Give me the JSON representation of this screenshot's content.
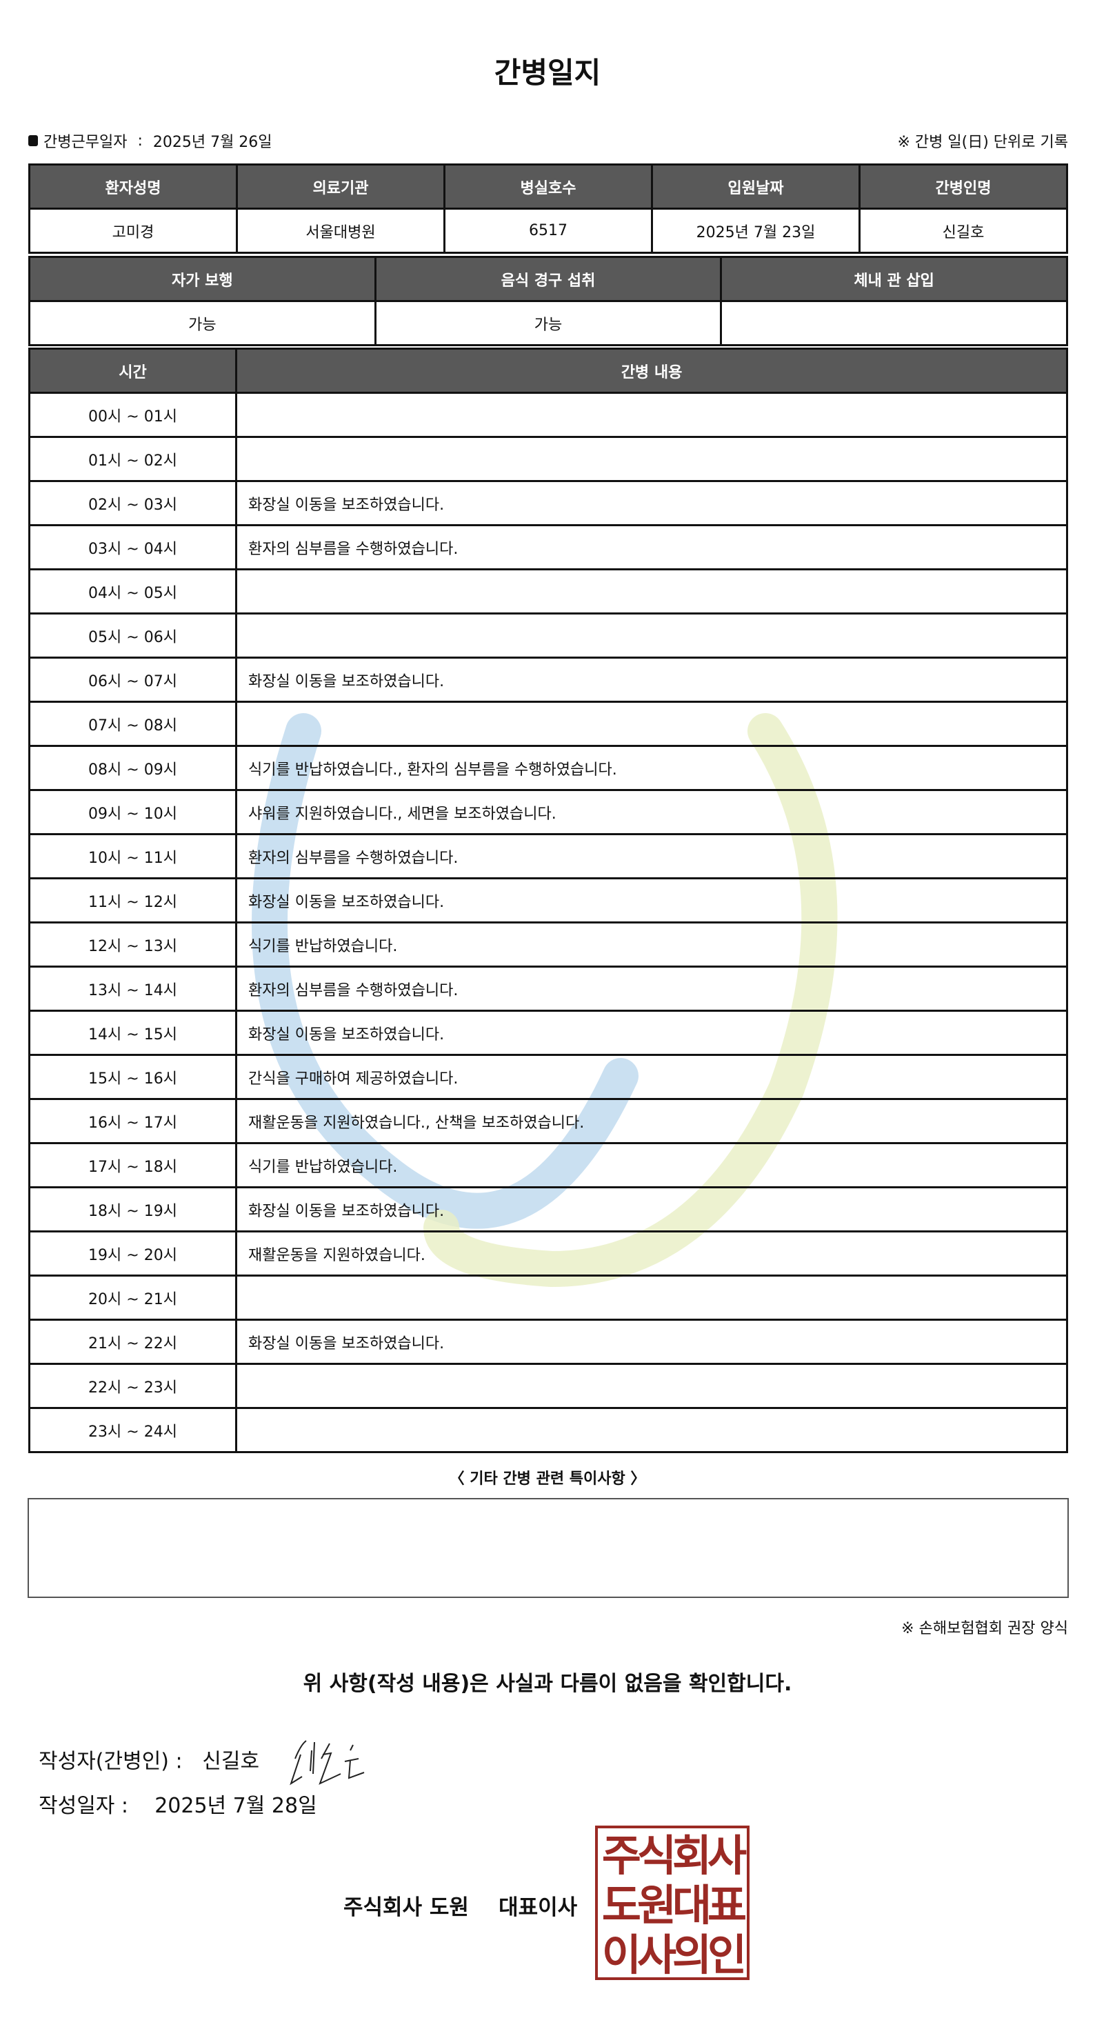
{
  "title": "간병일지",
  "info": {
    "work_date_label": "간병근무일자",
    "work_date": "2025년 7월 26일",
    "note": "※ 간병 일(日) 단위로 기록"
  },
  "patient": {
    "headers": [
      "환자성명",
      "의료기관",
      "병실호수",
      "입원날짜",
      "간병인명"
    ],
    "values": [
      "고미경",
      "서울대병원",
      "6517",
      "2025년 7월 23일",
      "신길호"
    ]
  },
  "status": {
    "headers": [
      "자가 보행",
      "음식 경구 섭취",
      "체내 관 삽입"
    ],
    "values": [
      "가능",
      "가능",
      ""
    ]
  },
  "log": {
    "headers": [
      "시간",
      "간병 내용"
    ],
    "rows": [
      [
        "00시 ~ 01시",
        ""
      ],
      [
        "01시 ~ 02시",
        ""
      ],
      [
        "02시 ~ 03시",
        "화장실 이동을 보조하였습니다."
      ],
      [
        "03시 ~ 04시",
        "환자의 심부름을 수행하였습니다."
      ],
      [
        "04시 ~ 05시",
        ""
      ],
      [
        "05시 ~ 06시",
        ""
      ],
      [
        "06시 ~ 07시",
        "화장실 이동을 보조하였습니다."
      ],
      [
        "07시 ~ 08시",
        ""
      ],
      [
        "08시 ~ 09시",
        "식기를 반납하였습니다., 환자의 심부름을 수행하였습니다."
      ],
      [
        "09시 ~ 10시",
        "샤워를 지원하였습니다., 세면을 보조하였습니다."
      ],
      [
        "10시 ~ 11시",
        "환자의 심부름을 수행하였습니다."
      ],
      [
        "11시 ~ 12시",
        "화장실 이동을 보조하였습니다."
      ],
      [
        "12시 ~ 13시",
        "식기를 반납하였습니다."
      ],
      [
        "13시 ~ 14시",
        "환자의 심부름을 수행하였습니다."
      ],
      [
        "14시 ~ 15시",
        "화장실 이동을 보조하였습니다."
      ],
      [
        "15시 ~ 16시",
        "간식을 구매하여 제공하였습니다."
      ],
      [
        "16시 ~ 17시",
        "재활운동을 지원하였습니다., 산책을 보조하였습니다."
      ],
      [
        "17시 ~ 18시",
        "식기를 반납하였습니다."
      ],
      [
        "18시 ~ 19시",
        "화장실 이동을 보조하였습니다."
      ],
      [
        "19시 ~ 20시",
        "재활운동을 지원하였습니다."
      ],
      [
        "20시 ~ 21시",
        ""
      ],
      [
        "21시 ~ 22시",
        "화장실 이동을 보조하였습니다."
      ],
      [
        "22시 ~ 23시",
        ""
      ],
      [
        "23시 ~ 24시",
        ""
      ]
    ]
  },
  "notes": {
    "title": "〈 기타 간병 관련 특이사항 〉",
    "content": ""
  },
  "footnote": "※ 손해보험협회 권장 양식",
  "confirm": "위 사항(작성 내용)은 사실과 다름이 없음을 확인합니다.",
  "writer": {
    "label": "작성자(간병인) :",
    "name": "신길호",
    "signature": "신길호"
  },
  "written_date": {
    "label": "작성일자 :",
    "value": "2025년 7월 28일"
  },
  "company": "주식회사 도원    대표이사",
  "seal": {
    "lines": [
      "주식회사",
      "도원대표",
      "이사의인"
    ],
    "color": "#9b2a24"
  },
  "colors": {
    "header_bg": "#595959",
    "watermark_blue": "#b8d6ec",
    "watermark_green": "#e8efc4"
  }
}
